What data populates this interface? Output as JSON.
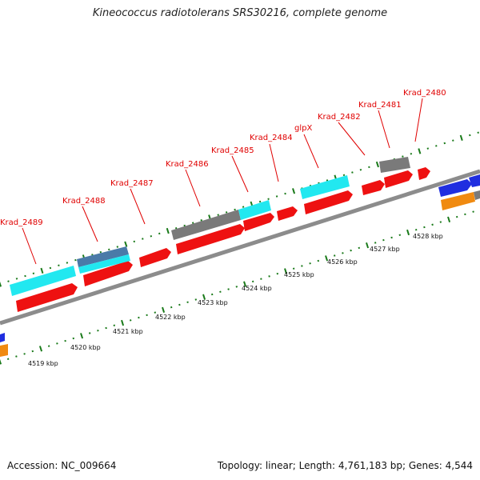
{
  "title": "Kineococcus radiotolerans SRS30216, complete genome",
  "footer": {
    "accession": "Accession: NC_009664",
    "summary": "Topology: linear; Length: 4,761,183 bp; Genes: 4,544"
  },
  "colors": {
    "gene_red": "#ee1111",
    "cyan": "#22e8f0",
    "steel": "#4a7aa8",
    "gray": "#7a7a7a",
    "blue": "#1f2ee0",
    "orange": "#f08a10",
    "tick_green": "#1a7a1a",
    "track": "#8c8c8c",
    "label_red": "#e00000"
  },
  "gene_labels": [
    "Krad_2489",
    "Krad_2488",
    "Krad_2487",
    "Krad_2486",
    "Krad_2485",
    "Krad_2484",
    "glpX",
    "Krad_2482",
    "Krad_2481",
    "Krad_2480"
  ],
  "scale_labels": [
    "4519 kbp",
    "4520 kbp",
    "4521 kbp",
    "4522 kbp",
    "4523 kbp",
    "4524 kbp",
    "4525 kbp",
    "4526 kbp",
    "4527 kbp",
    "4528 kbp"
  ]
}
